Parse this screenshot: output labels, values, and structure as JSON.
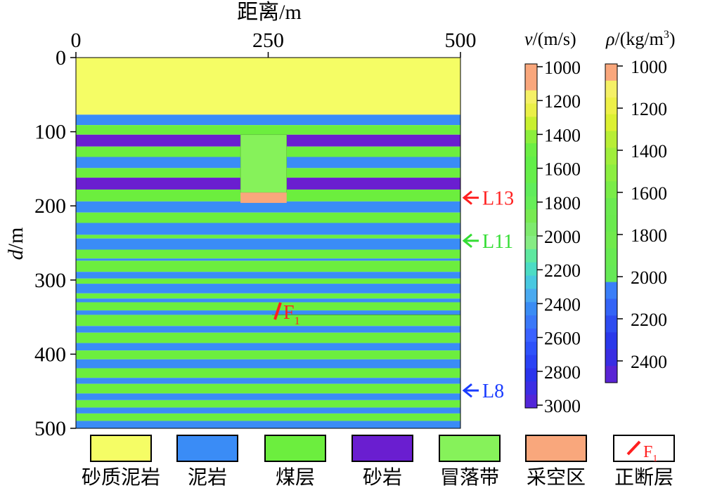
{
  "model": {
    "top_axis_title": "距离/m",
    "x_ticks": [
      "0",
      "250",
      "500"
    ],
    "y_axis_title_italic": "d",
    "y_axis_title_unit": "/m",
    "y_ticks": [
      "0",
      "100",
      "200",
      "300",
      "400",
      "500"
    ],
    "x_range": [
      0,
      500
    ],
    "depth_range": [
      0,
      500
    ],
    "layers": [
      {
        "top": 0,
        "bottom": 77,
        "lith": "sandy_mudstone"
      },
      {
        "top": 77,
        "bottom": 91,
        "lith": "mudstone"
      },
      {
        "top": 91,
        "bottom": 104,
        "lith": "coal"
      },
      {
        "top": 104,
        "bottom": 120,
        "lith": "sandstone"
      },
      {
        "top": 120,
        "bottom": 134,
        "lith": "coal"
      },
      {
        "top": 134,
        "bottom": 149,
        "lith": "mudstone"
      },
      {
        "top": 149,
        "bottom": 162,
        "lith": "coal"
      },
      {
        "top": 162,
        "bottom": 178,
        "lith": "sandstone"
      },
      {
        "top": 178,
        "bottom": 194,
        "lith": "coal"
      },
      {
        "top": 194,
        "bottom": 209,
        "lith": "mudstone"
      },
      {
        "top": 209,
        "bottom": 223,
        "lith": "coal"
      },
      {
        "top": 223,
        "bottom": 239,
        "lith": "mudstone"
      },
      {
        "top": 239,
        "bottom": 244,
        "lith": "coal"
      },
      {
        "top": 244,
        "bottom": 259,
        "lith": "mudstone"
      },
      {
        "top": 259,
        "bottom": 271,
        "lith": "coal"
      },
      {
        "top": 271,
        "bottom": 274,
        "lith": "mudstone"
      },
      {
        "top": 274,
        "bottom": 289,
        "lith": "coal"
      },
      {
        "top": 289,
        "bottom": 298,
        "lith": "mudstone"
      },
      {
        "top": 298,
        "bottom": 305,
        "lith": "coal"
      },
      {
        "top": 305,
        "bottom": 318,
        "lith": "mudstone"
      },
      {
        "top": 318,
        "bottom": 325,
        "lith": "coal"
      },
      {
        "top": 325,
        "bottom": 330,
        "lith": "mudstone"
      },
      {
        "top": 330,
        "bottom": 341,
        "lith": "coal"
      },
      {
        "top": 341,
        "bottom": 347,
        "lith": "mudstone"
      },
      {
        "top": 347,
        "bottom": 362,
        "lith": "coal"
      },
      {
        "top": 362,
        "bottom": 371,
        "lith": "mudstone"
      },
      {
        "top": 371,
        "bottom": 385,
        "lith": "coal"
      },
      {
        "top": 385,
        "bottom": 395,
        "lith": "mudstone"
      },
      {
        "top": 395,
        "bottom": 407,
        "lith": "coal"
      },
      {
        "top": 407,
        "bottom": 419,
        "lith": "mudstone"
      },
      {
        "top": 419,
        "bottom": 432,
        "lith": "coal"
      },
      {
        "top": 432,
        "bottom": 440,
        "lith": "mudstone"
      },
      {
        "top": 440,
        "bottom": 453,
        "lith": "coal"
      },
      {
        "top": 453,
        "bottom": 462,
        "lith": "mudstone"
      },
      {
        "top": 462,
        "bottom": 472,
        "lith": "coal"
      },
      {
        "top": 472,
        "bottom": 480,
        "lith": "mudstone"
      },
      {
        "top": 480,
        "bottom": 490,
        "lith": "coal"
      },
      {
        "top": 490,
        "bottom": 500,
        "lith": "mudstone"
      }
    ],
    "caved_zone": {
      "x_start": 214,
      "x_end": 274,
      "top": 104,
      "bottom": 182
    },
    "goaf": {
      "x_start": 214,
      "x_end": 274,
      "top": 182,
      "bottom": 196
    },
    "fault_label": "F",
    "fault_subscript": "1",
    "fault_depth": 347,
    "level_markers": [
      {
        "label": "L13",
        "depth": 189,
        "color": "#ff2020"
      },
      {
        "label": "L11",
        "depth": 247,
        "color": "#33dd33"
      },
      {
        "label": "L8",
        "depth": 449,
        "color": "#1a3cff"
      }
    ]
  },
  "velocity_bar": {
    "symbol": "v",
    "unit": "/(m/s)",
    "min": 1000,
    "max": 3000,
    "ticks": [
      "1000",
      "1200",
      "1400",
      "1600",
      "1800",
      "2000",
      "2200",
      "2400",
      "2600",
      "2800",
      "3000"
    ],
    "colors": [
      "#f9a77c",
      "#f9a77c",
      "#f5f066",
      "#eaf048",
      "#c8f030",
      "#8cee3c",
      "#6cee44",
      "#62ee48",
      "#66ee4a",
      "#60ec5a",
      "#66ee58",
      "#78ea52",
      "#7eea6e",
      "#86ec84",
      "#5ee8a0",
      "#4cdcc4",
      "#48c8e0",
      "#4aaaf0",
      "#3a8cf4",
      "#3a78f8",
      "#3a62ff",
      "#2e52fa",
      "#2a42f4",
      "#2a34ec",
      "#3c2ee4",
      "#5226d8"
    ]
  },
  "density_bar": {
    "symbol": "ρ",
    "unit": "/(kg/m",
    "unit_sup": "3",
    "unit_close": ")",
    "min": 950,
    "max": 2500,
    "ticks": [
      "1000",
      "1200",
      "1400",
      "1600",
      "1800",
      "2000",
      "2200",
      "2400"
    ],
    "colors": [
      "#f9a77c",
      "#f5f066",
      "#eef048",
      "#dcf032",
      "#b8ee36",
      "#a0ee3c",
      "#8cee40",
      "#7aec48",
      "#6cea50",
      "#6aea4e",
      "#70ea4c",
      "#68ea52",
      "#66e956",
      "#3a7ef8",
      "#3464f6",
      "#2e4cf0",
      "#2a38ea",
      "#3a2ee2",
      "#5a24d4"
    ]
  },
  "legend": [
    {
      "label": "砂质泥岩",
      "color": "#f5fd65"
    },
    {
      "label": "泥岩",
      "color": "#3a8cf6"
    },
    {
      "label": "煤层",
      "color": "#6cee3e"
    },
    {
      "label": "砂岩",
      "color": "#6a1ed0"
    },
    {
      "label": "冒落带",
      "color": "#86f25a"
    },
    {
      "label": "采空区",
      "color": "#f9a77c"
    },
    {
      "label": "正断层",
      "color": "#ffffff",
      "symbol_text": "F",
      "symbol_sub": "1"
    }
  ],
  "lith_colors": {
    "sandy_mudstone": "#f5fd65",
    "mudstone": "#3a8cf6",
    "coal": "#6cee3e",
    "sandstone": "#6a1ed0",
    "caved": "#86f25a",
    "goaf": "#f9a77c",
    "fault": "#ff1f1f"
  }
}
